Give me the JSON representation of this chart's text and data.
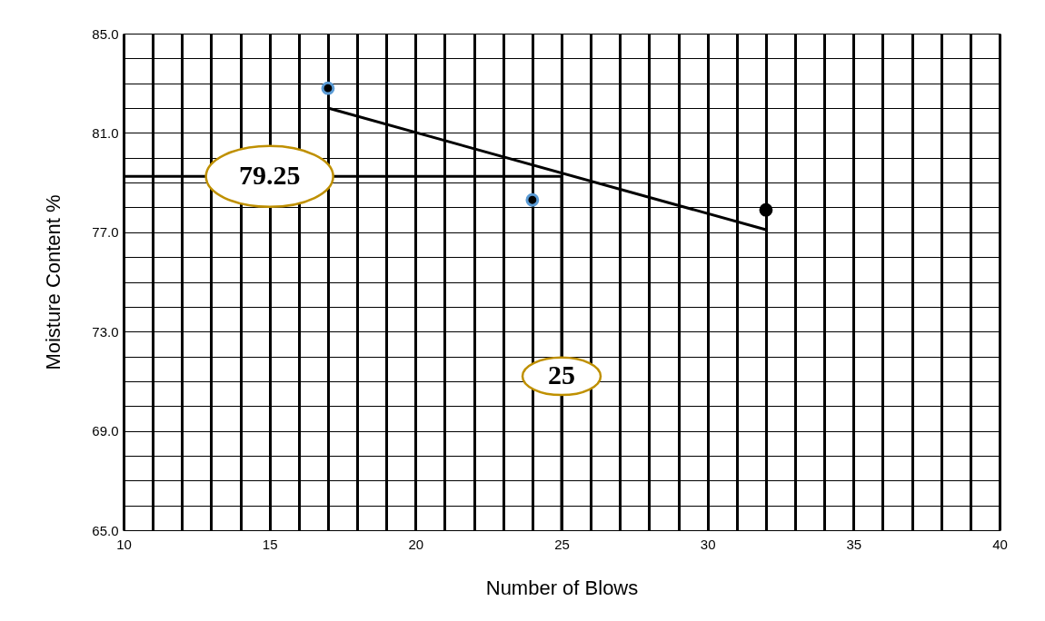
{
  "chart_data": {
    "type": "scatter",
    "xlabel": "Number of Blows",
    "ylabel": "Moisture Content %",
    "xlim": [
      10,
      40
    ],
    "xticks": [
      10,
      {
        "value": 11,
        "label": null
      },
      {
        "value": 12,
        "label": null
      },
      {
        "value": 13,
        "label": null
      },
      {
        "value": 14,
        "label": null
      },
      15,
      {
        "value": 16,
        "label": null
      },
      {
        "value": 17,
        "label": null
      },
      {
        "value": 18,
        "label": null
      },
      {
        "value": 19,
        "label": null
      },
      20,
      {
        "value": 21,
        "label": null
      },
      {
        "value": 22,
        "label": null
      },
      {
        "value": 23,
        "label": null
      },
      {
        "value": 24,
        "label": null
      },
      25,
      {
        "value": 26,
        "label": null
      },
      {
        "value": 27,
        "label": null
      },
      {
        "value": 28,
        "label": null
      },
      {
        "value": 29,
        "label": null
      },
      30,
      {
        "value": 31,
        "label": null
      },
      {
        "value": 32,
        "label": null
      },
      {
        "value": 33,
        "label": null
      },
      {
        "value": 34,
        "label": null
      },
      35,
      {
        "value": 36,
        "label": null
      },
      {
        "value": 37,
        "label": null
      },
      {
        "value": 38,
        "label": null
      },
      {
        "value": 39,
        "label": null
      },
      40
    ],
    "ylim": [
      65,
      85
    ],
    "yticks": [
      {
        "value": 65,
        "label": "65.0"
      },
      {
        "value": 66,
        "label": null
      },
      {
        "value": 67,
        "label": null
      },
      {
        "value": 68,
        "label": null
      },
      {
        "value": 69,
        "label": "69.0"
      },
      {
        "value": 70,
        "label": null
      },
      {
        "value": 71,
        "label": null
      },
      {
        "value": 72,
        "label": null
      },
      {
        "value": 73,
        "label": "73.0"
      },
      {
        "value": 74,
        "label": null
      },
      {
        "value": 75,
        "label": null
      },
      {
        "value": 76,
        "label": null
      },
      {
        "value": 77,
        "label": "77.0"
      },
      {
        "value": 78,
        "label": null
      },
      {
        "value": 79,
        "label": null
      },
      {
        "value": 80,
        "label": null
      },
      {
        "value": 81,
        "label": "81.0"
      },
      {
        "value": 82,
        "label": null
      },
      {
        "value": 83,
        "label": null
      },
      {
        "value": 84,
        "label": null
      },
      {
        "value": 85,
        "label": "85.0"
      }
    ],
    "grid": true,
    "series": [
      {
        "type": "line",
        "marker": "none",
        "color": "#000000",
        "x": [
          17,
          32
        ],
        "values": [
          82.0,
          77.1
        ]
      },
      {
        "type": "line",
        "marker": "none",
        "color": "#000000",
        "x": [
          25,
          10
        ],
        "values": [
          79.25,
          79.25
        ]
      },
      {
        "type": "line",
        "marker": "none",
        "color": "#000000",
        "x": [
          25,
          25
        ],
        "values": [
          65,
          79.25
        ]
      },
      {
        "marker": "circle",
        "color": "#5b9bd5",
        "x": [
          17,
          24
        ],
        "values": [
          82.8,
          78.3
        ]
      },
      {
        "marker": "circle",
        "color": "#000000",
        "x": [
          32
        ],
        "values": [
          77.9
        ]
      }
    ],
    "annotations": [
      {
        "text": "79.25",
        "x": 15,
        "y": 79.25
      },
      {
        "text": "25",
        "x": 25,
        "y": 71.2
      }
    ]
  }
}
